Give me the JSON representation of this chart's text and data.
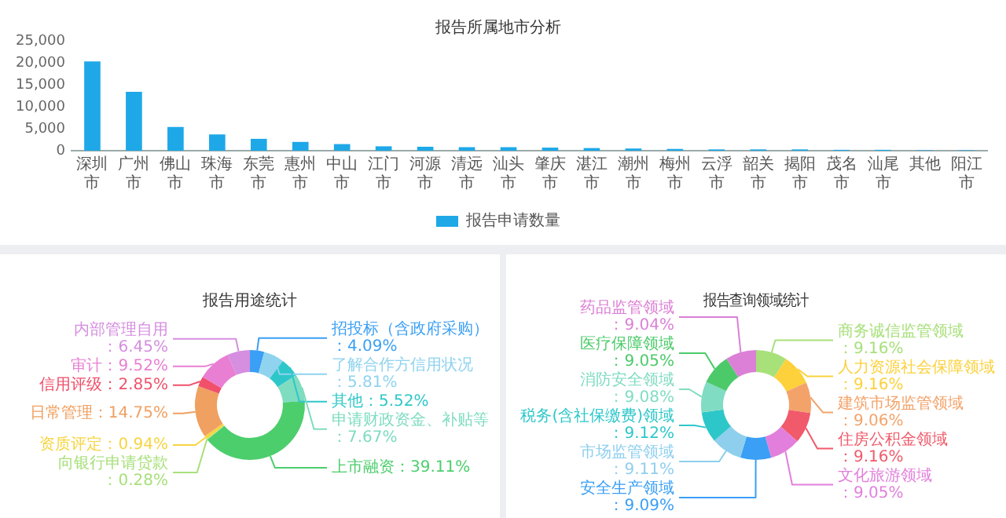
{
  "chart_data": [
    {
      "type": "bar",
      "title": "报告所属地市分析",
      "categories": [
        "深圳市",
        "广州市",
        "佛山市",
        "珠海市",
        "东莞市",
        "惠州市",
        "中山市",
        "江门市",
        "河源市",
        "清远市",
        "汕头市",
        "肇庆市",
        "湛江市",
        "潮州市",
        "梅州市",
        "云浮市",
        "韶关市",
        "揭阳市",
        "茂名市",
        "汕尾市",
        "其他",
        "阳江市"
      ],
      "series": [
        {
          "name": "报告申请数量",
          "color": "#1ea8e8",
          "values": [
            20300,
            13400,
            5400,
            3700,
            2700,
            2000,
            1500,
            1000,
            900,
            800,
            800,
            700,
            600,
            500,
            400,
            300,
            300,
            300,
            200,
            200,
            100,
            100
          ]
        }
      ],
      "ylim": [
        0,
        25000
      ],
      "yticks": [
        0,
        {
          "value": 5000,
          "label": "5,000"
        },
        {
          "value": 10000,
          "label": "10,000"
        },
        {
          "value": 15000,
          "label": "15,000"
        },
        {
          "value": 20000,
          "label": "20,000"
        },
        {
          "value": 25000,
          "label": "25,000"
        }
      ],
      "grid": false,
      "legend": "bottom"
    },
    {
      "type": "donut",
      "title": "报告用途统计",
      "categories": [
        "招投标（含政府采购）",
        "了解合作方信用状况",
        "其他",
        "申请财政资金、补贴等",
        "上市融资",
        "向银行申请贷款",
        "资质评定",
        "日常管理",
        "信用评级",
        "审计",
        "内部管理自用"
      ],
      "values": [
        4.09,
        5.81,
        5.52,
        7.67,
        39.11,
        0.28,
        0.94,
        14.75,
        2.85,
        9.52,
        6.45
      ],
      "value_labels": [
        "：4.09%",
        "：5.81%",
        "：5.52%",
        "：7.67%",
        "：39.11%",
        "：0.28%",
        "：0.94%",
        "：14.75%",
        "：2.85%",
        "：9.52%",
        "：6.45%"
      ],
      "colors": [
        "#3a9ff5",
        "#8fd3ef",
        "#2ec7c9",
        "#7edcc0",
        "#4cce6c",
        "#a8e07a",
        "#f7d440",
        "#f0a060",
        "#f0506a",
        "#e87fd3",
        "#d58ee0"
      ]
    },
    {
      "type": "donut",
      "title": "报告查询领域统计",
      "categories": [
        "商务诚信监管领域",
        "人力资源社会保障领域",
        "建筑市场监管领域",
        "住房公积金领域",
        "文化旅游领域",
        "安全生产领域",
        "市场监管领域",
        "税务(含社保缴费)领域",
        "消防安全领域",
        "医疗保障领域",
        "药品监管领域"
      ],
      "values": [
        9.16,
        9.16,
        9.06,
        9.16,
        9.05,
        9.09,
        9.11,
        9.12,
        9.08,
        9.05,
        9.04
      ],
      "value_labels": [
        "：9.16%",
        "：9.16%",
        "：9.06%",
        "：9.16%",
        "：9.05%",
        "：9.09%",
        "：9.11%",
        "：9.12%",
        "：9.08%",
        "：9.05%",
        "：9.04%"
      ],
      "colors": [
        "#a8e07a",
        "#fcd13b",
        "#f3a36a",
        "#f05a6a",
        "#e27fdc",
        "#3a9ff5",
        "#8fcfee",
        "#2ec7c9",
        "#80dcc2",
        "#4cca6a",
        "#dc7fd6"
      ]
    }
  ]
}
